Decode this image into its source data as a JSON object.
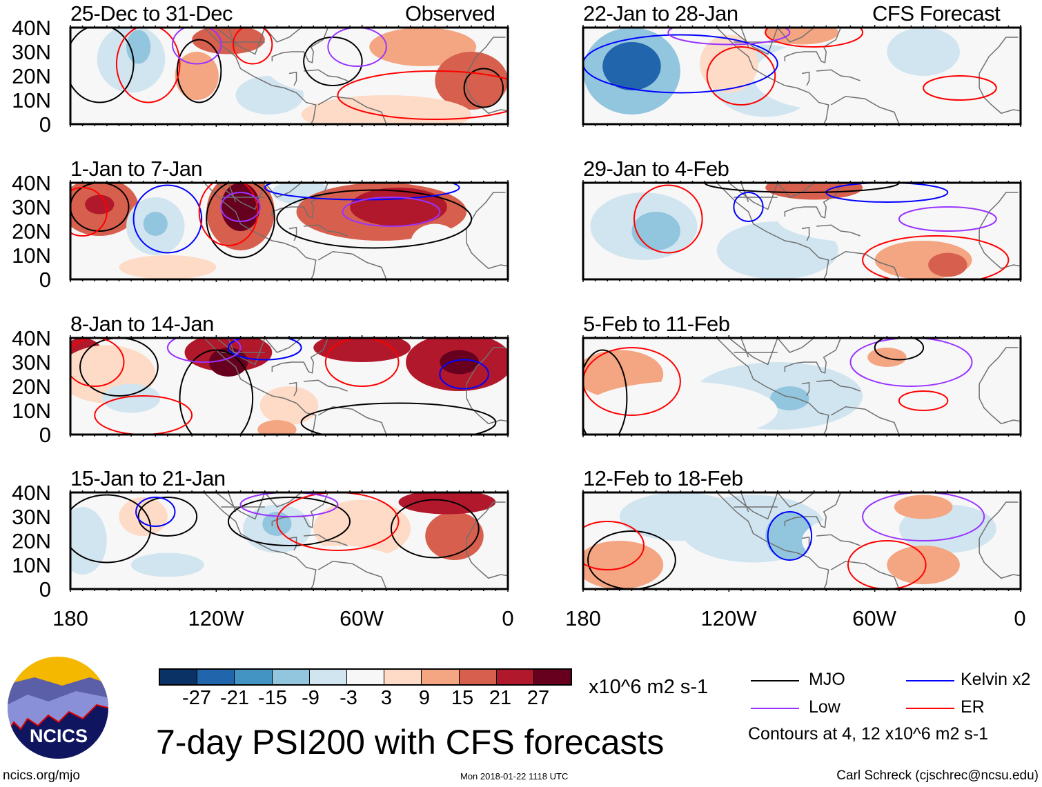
{
  "colors": [
    "#0a3264",
    "#2166ac",
    "#4393c3",
    "#92c5de",
    "#d1e5f0",
    "#f7f7f7",
    "#fddbc7",
    "#f4a582",
    "#d6604d",
    "#b2182b",
    "#67001f"
  ],
  "colorbar": {
    "labels": [
      "-27",
      "-21",
      "-15",
      "-9",
      "-3",
      "3",
      "9",
      "15",
      "21",
      "27"
    ],
    "units": "x10^6 m2 s-1"
  },
  "column_labels": {
    "left": "Observed",
    "right": "CFS Forecast"
  },
  "y_ticks": [
    "40N",
    "30N",
    "20N",
    "10N",
    "0"
  ],
  "x_ticks": [
    "180",
    "120W",
    "60W",
    "0"
  ],
  "title": "7-day PSI200 with CFS forecasts",
  "legend": {
    "items": [
      {
        "label": "MJO",
        "color": "#000000"
      },
      {
        "label": "Kelvin x2",
        "color": "#0000ff"
      },
      {
        "label": "Low",
        "color": "#9933ff"
      },
      {
        "label": "ER",
        "color": "#ff0000"
      }
    ],
    "note": "Contours at 4, 12 x10^6 m2 s-1"
  },
  "footer": {
    "left": "ncics.org/mjo",
    "center": "Mon 2018-01-22 1118 UTC",
    "right": "Carl Schreck (cjschrec@ncsu.edu)"
  },
  "logo_text": "NCICS",
  "chart_data": {
    "type": "heatmap",
    "lon_range": [
      "180",
      "0"
    ],
    "lat_range": [
      0,
      40
    ],
    "panels": [
      {
        "title": "25-Dec to 31-Dec",
        "anoms": [
          [
            155,
            27,
            14,
            14,
            -9
          ],
          [
            152,
            32,
            5,
            7,
            -15
          ],
          [
            115,
            35,
            15,
            6,
            15
          ],
          [
            128,
            20,
            9,
            10,
            9
          ],
          [
            98,
            12,
            14,
            8,
            -9
          ],
          [
            75,
            25,
            25,
            12,
            -3
          ],
          [
            35,
            32,
            22,
            8,
            9
          ],
          [
            15,
            18,
            15,
            12,
            15
          ],
          [
            50,
            4,
            35,
            8,
            3
          ]
        ],
        "contours": [
          [
            "#000",
            168,
            25,
            14,
            16
          ],
          [
            "#000",
            127,
            22,
            9,
            13
          ],
          [
            "#000",
            72,
            26,
            12,
            10
          ],
          [
            "#000",
            10,
            15,
            8,
            8
          ],
          [
            "#f00",
            148,
            25,
            13,
            16
          ],
          [
            "#f00",
            105,
            33,
            8,
            8
          ],
          [
            "#f00",
            30,
            12,
            40,
            10
          ],
          [
            "#90f",
            128,
            33,
            10,
            8
          ],
          [
            "#90f",
            62,
            32,
            12,
            8
          ]
        ]
      },
      {
        "title": "1-Jan to 7-Jan",
        "anoms": [
          [
            168,
            30,
            16,
            12,
            15
          ],
          [
            168,
            31,
            6,
            4,
            21
          ],
          [
            145,
            22,
            12,
            12,
            -9
          ],
          [
            145,
            23,
            5,
            5,
            -15
          ],
          [
            110,
            28,
            14,
            16,
            15
          ],
          [
            110,
            30,
            8,
            10,
            27
          ],
          [
            85,
            36,
            12,
            5,
            -9
          ],
          [
            52,
            28,
            35,
            12,
            15
          ],
          [
            45,
            30,
            20,
            8,
            21
          ],
          [
            30,
            15,
            10,
            8,
            -3
          ],
          [
            140,
            5,
            20,
            5,
            3
          ]
        ],
        "contours": [
          [
            "#000",
            168,
            30,
            12,
            10
          ],
          [
            "#000",
            110,
            25,
            14,
            16
          ],
          [
            "#000",
            55,
            25,
            40,
            12
          ],
          [
            "#00f",
            140,
            25,
            14,
            14
          ],
          [
            "#00f",
            60,
            38,
            40,
            5
          ],
          [
            "#f00",
            175,
            28,
            10,
            10
          ],
          [
            "#f00",
            115,
            28,
            12,
            14
          ],
          [
            "#90f",
            110,
            30,
            8,
            6
          ],
          [
            "#90f",
            48,
            28,
            20,
            6
          ]
        ]
      },
      {
        "title": "8-Jan to 14-Jan",
        "anoms": [
          [
            175,
            34,
            8,
            6,
            21
          ],
          [
            165,
            25,
            20,
            12,
            3
          ],
          [
            155,
            15,
            12,
            6,
            -9
          ],
          [
            115,
            34,
            18,
            8,
            21
          ],
          [
            115,
            30,
            8,
            6,
            27
          ],
          [
            60,
            36,
            20,
            6,
            21
          ],
          [
            20,
            30,
            22,
            12,
            21
          ],
          [
            20,
            30,
            8,
            5,
            27
          ],
          [
            90,
            12,
            12,
            8,
            3
          ],
          [
            45,
            12,
            10,
            6,
            -3
          ],
          [
            95,
            2,
            8,
            4,
            9
          ]
        ],
        "contours": [
          [
            "#000",
            160,
            28,
            16,
            12
          ],
          [
            "#000",
            120,
            15,
            15,
            20
          ],
          [
            "#000",
            45,
            5,
            40,
            8
          ],
          [
            "#f00",
            170,
            30,
            12,
            10
          ],
          [
            "#f00",
            60,
            30,
            15,
            10
          ],
          [
            "#f00",
            150,
            8,
            20,
            8
          ],
          [
            "#00f",
            18,
            25,
            10,
            6
          ],
          [
            "#00f",
            100,
            36,
            15,
            5
          ],
          [
            "#90f",
            125,
            36,
            15,
            6
          ]
        ]
      },
      {
        "title": "15-Jan to 21-Jan",
        "anoms": [
          [
            175,
            20,
            10,
            14,
            -9
          ],
          [
            150,
            30,
            10,
            8,
            3
          ],
          [
            140,
            10,
            15,
            5,
            -9
          ],
          [
            95,
            25,
            14,
            10,
            -9
          ],
          [
            95,
            27,
            6,
            5,
            -15
          ],
          [
            60,
            25,
            20,
            12,
            3
          ],
          [
            22,
            22,
            12,
            10,
            15
          ],
          [
            25,
            36,
            20,
            5,
            21
          ],
          [
            70,
            10,
            25,
            8,
            -3
          ]
        ],
        "contours": [
          [
            "#000",
            165,
            25,
            18,
            14
          ],
          [
            "#000",
            140,
            30,
            12,
            8
          ],
          [
            "#000",
            90,
            28,
            25,
            10
          ],
          [
            "#000",
            30,
            25,
            18,
            12
          ],
          [
            "#f00",
            70,
            28,
            25,
            12
          ],
          [
            "#00f",
            145,
            32,
            8,
            6
          ],
          [
            "#90f",
            90,
            35,
            20,
            5
          ]
        ]
      },
      {
        "title": "22-Jan to 28-Jan",
        "anoms": [
          [
            160,
            22,
            20,
            18,
            -15
          ],
          [
            160,
            24,
            12,
            10,
            -27
          ],
          [
            105,
            18,
            22,
            15,
            -9
          ],
          [
            80,
            20,
            30,
            14,
            -3
          ],
          [
            40,
            30,
            15,
            10,
            -9
          ],
          [
            120,
            25,
            12,
            12,
            3
          ],
          [
            90,
            38,
            15,
            5,
            9
          ]
        ],
        "contours": [
          [
            "#f00",
            115,
            20,
            14,
            12
          ],
          [
            "#00f",
            140,
            25,
            40,
            12
          ],
          [
            "#f00",
            85,
            38,
            20,
            6
          ],
          [
            "#90f",
            120,
            38,
            25,
            5
          ],
          [
            "#f00",
            25,
            15,
            15,
            5
          ]
        ]
      },
      {
        "title": "29-Jan to 4-Feb",
        "anoms": [
          [
            155,
            22,
            22,
            14,
            -9
          ],
          [
            150,
            20,
            10,
            8,
            -15
          ],
          [
            100,
            12,
            25,
            12,
            -9
          ],
          [
            60,
            25,
            40,
            10,
            -3
          ],
          [
            40,
            8,
            20,
            8,
            9
          ],
          [
            30,
            6,
            8,
            5,
            15
          ],
          [
            85,
            38,
            20,
            5,
            15
          ]
        ],
        "contours": [
          [
            "#f00",
            145,
            25,
            14,
            14
          ],
          [
            "#00f",
            112,
            30,
            6,
            6
          ],
          [
            "#00f",
            55,
            36,
            25,
            4
          ],
          [
            "#f00",
            35,
            8,
            30,
            10
          ],
          [
            "#90f",
            30,
            25,
            20,
            5
          ],
          [
            "#000",
            90,
            40,
            40,
            4
          ]
        ]
      },
      {
        "title": "5-Feb to 11-Feb",
        "anoms": [
          [
            165,
            25,
            18,
            10,
            9
          ],
          [
            100,
            16,
            35,
            14,
            -9
          ],
          [
            95,
            15,
            8,
            5,
            -15
          ],
          [
            140,
            10,
            40,
            12,
            -3
          ],
          [
            50,
            32,
            20,
            8,
            -3
          ],
          [
            55,
            32,
            8,
            4,
            9
          ],
          [
            20,
            20,
            15,
            10,
            -3
          ]
        ],
        "contours": [
          [
            "#f00",
            160,
            22,
            20,
            14
          ],
          [
            "#000",
            172,
            15,
            10,
            20
          ],
          [
            "#90f",
            45,
            30,
            25,
            10
          ],
          [
            "#f00",
            40,
            14,
            10,
            4
          ],
          [
            "#000",
            50,
            36,
            10,
            5
          ]
        ]
      },
      {
        "title": "12-Feb to 18-Feb",
        "anoms": [
          [
            165,
            10,
            18,
            10,
            9
          ],
          [
            110,
            25,
            30,
            14,
            -9
          ],
          [
            95,
            22,
            10,
            10,
            -15
          ],
          [
            140,
            30,
            25,
            10,
            -9
          ],
          [
            60,
            20,
            30,
            12,
            -3
          ],
          [
            30,
            25,
            20,
            10,
            -9
          ],
          [
            40,
            10,
            15,
            8,
            9
          ],
          [
            40,
            34,
            12,
            5,
            9
          ]
        ],
        "contours": [
          [
            "#000",
            160,
            12,
            18,
            12
          ],
          [
            "#f00",
            170,
            18,
            15,
            10
          ],
          [
            "#00f",
            95,
            22,
            9,
            10
          ],
          [
            "#f00",
            55,
            10,
            16,
            10
          ],
          [
            "#90f",
            40,
            30,
            25,
            10
          ]
        ]
      }
    ]
  }
}
